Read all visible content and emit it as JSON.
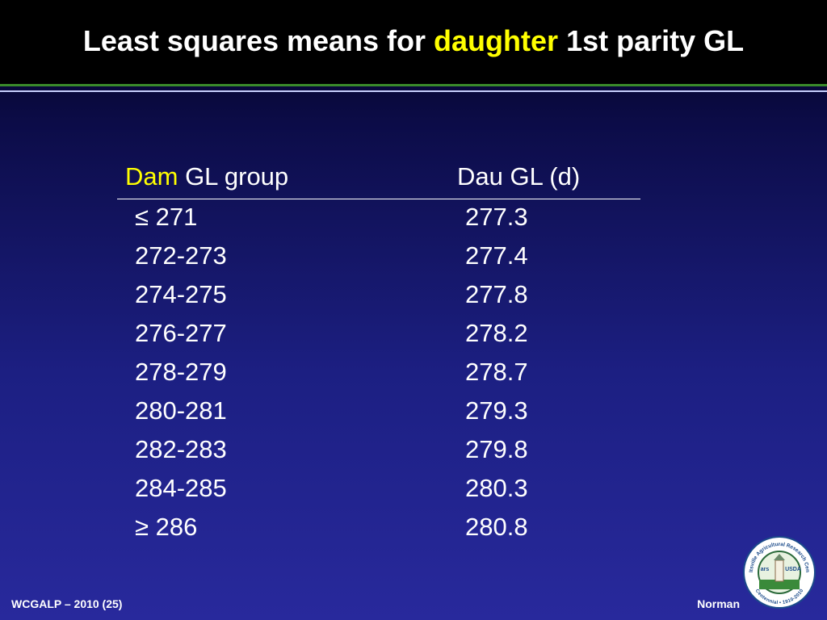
{
  "header": {
    "title_parts": [
      "Least squares means for ",
      "daughter",
      " 1st parity GL"
    ]
  },
  "table": {
    "columns": [
      [
        "Dam",
        " GL group"
      ],
      "Dau GL (d)"
    ],
    "rows": [
      [
        "≤ 271",
        "277.3"
      ],
      [
        "272-273",
        "277.4"
      ],
      [
        "274-275",
        "277.8"
      ],
      [
        "276-277",
        "278.2"
      ],
      [
        "278-279",
        "278.7"
      ],
      [
        "280-281",
        "279.3"
      ],
      [
        "282-283",
        "279.8"
      ],
      [
        "284-285",
        "280.3"
      ],
      [
        "≥ 286",
        "280.8"
      ]
    ]
  },
  "footer": {
    "left": "WCGALP – 2010 (25)",
    "right": "Norman"
  },
  "logo": {
    "ring_top": "Beltsville Agricultural Research Center",
    "ring_bottom": "Centennial • 1910-2010",
    "agency": "USDA",
    "ars": "ars"
  }
}
